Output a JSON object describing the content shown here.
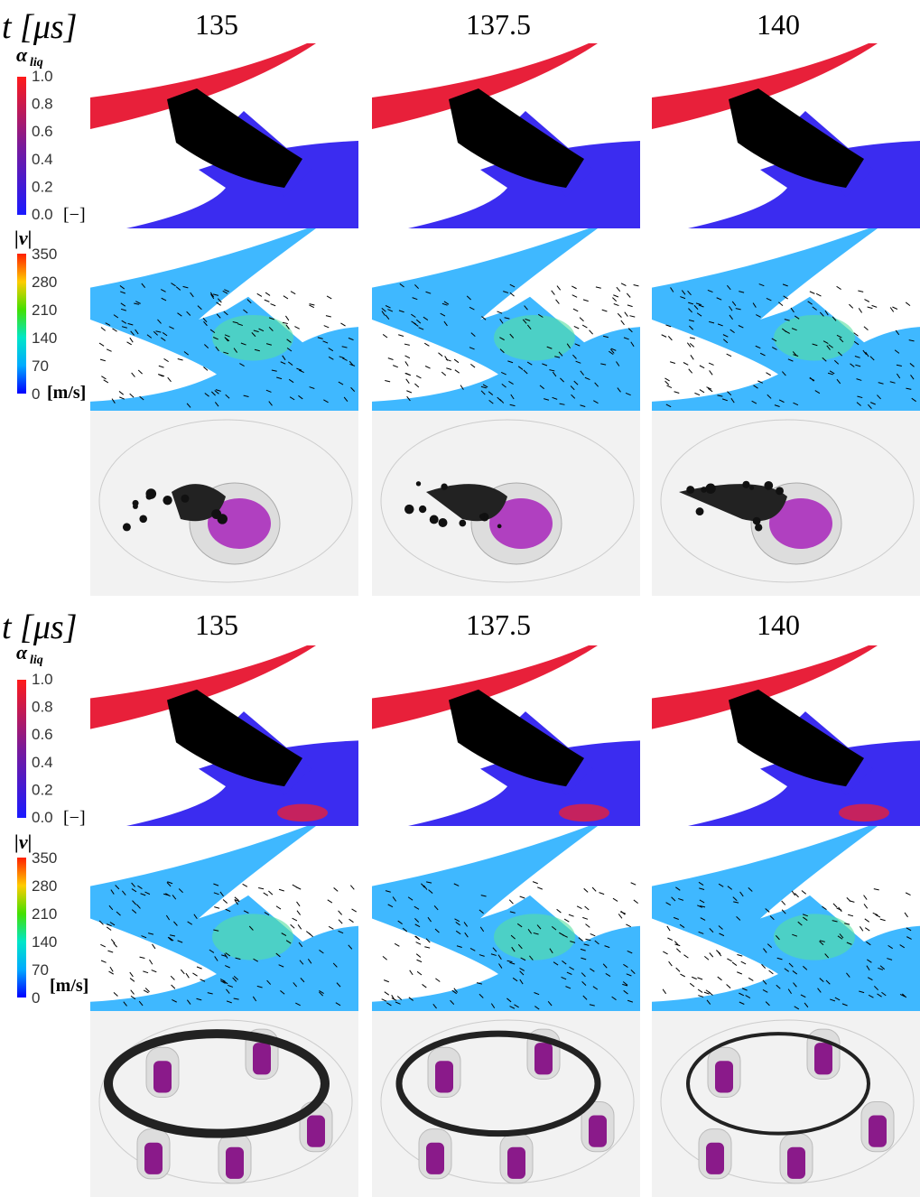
{
  "panels": [
    {
      "header": {
        "time_label": "t [μs]",
        "times": [
          "135",
          "137.5",
          "140"
        ]
      },
      "alpha_colorbar": {
        "symbol": "α",
        "subscript": "liq",
        "ticks": [
          "1.0",
          "0.8",
          "0.6",
          "0.4",
          "0.2",
          "0.0"
        ],
        "unit": "[−]"
      },
      "velocity_colorbar": {
        "symbol": "|v|",
        "ticks": [
          "350",
          "280",
          "210",
          "140",
          "70",
          "0"
        ],
        "unit": "[m/s]"
      }
    },
    {
      "header": {
        "time_label": "t [μs]",
        "times": [
          "135",
          "137.5",
          "140"
        ]
      },
      "alpha_colorbar": {
        "symbol": "α",
        "subscript": "liq",
        "ticks": [
          "1.0",
          "0.8",
          "0.6",
          "0.4",
          "0.2",
          "0.0"
        ],
        "unit": "[−]"
      },
      "velocity_colorbar": {
        "symbol": "|v|",
        "ticks": [
          "350",
          "280",
          "210",
          "140",
          "70",
          "0"
        ],
        "unit": "[m/s]"
      }
    }
  ]
}
